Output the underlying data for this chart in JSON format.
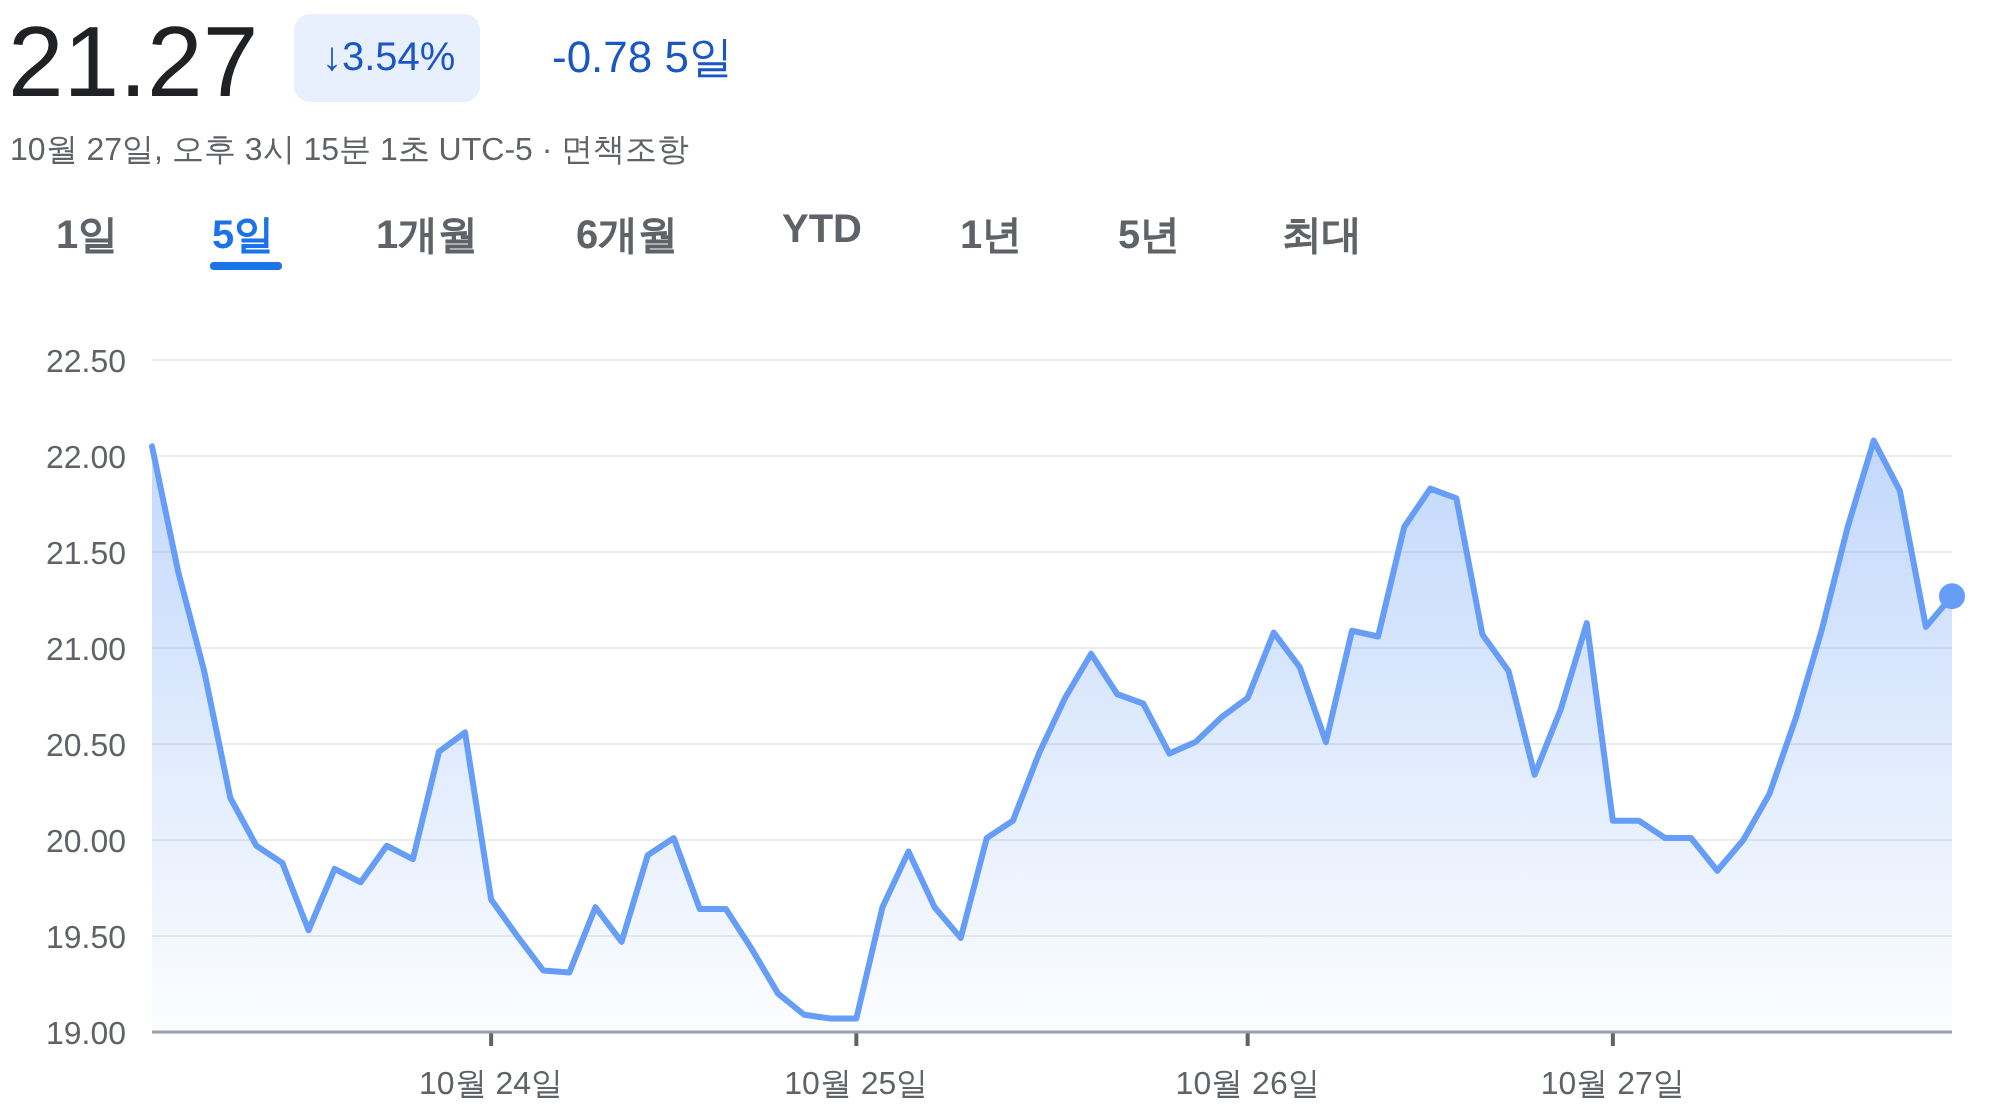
{
  "chart_data": {
    "type": "area",
    "title": "21.27",
    "subtitle": "10월 27일, 오후 3시 15분 1초 UTC-5 · 면책조항",
    "annotations": [
      "↓3.54%",
      "-0.78 5일",
      "1일",
      "5일",
      "1개월",
      "6개월",
      "YTD",
      "1년",
      "5년",
      "최대"
    ],
    "categories": [
      null,
      null,
      null,
      null,
      null,
      null,
      null,
      null,
      null,
      null,
      null,
      null,
      null,
      "10월 24일",
      null,
      null,
      null,
      null,
      null,
      null,
      null,
      null,
      null,
      null,
      null,
      null,
      null,
      "10월 25일",
      null,
      null,
      null,
      null,
      null,
      null,
      null,
      null,
      null,
      null,
      null,
      null,
      null,
      null,
      "10월 26일",
      null,
      null,
      null,
      null,
      null,
      null,
      null,
      null,
      null,
      null,
      null,
      null,
      null,
      "10월 27일",
      null,
      null,
      null,
      null,
      null,
      null,
      null,
      null,
      null,
      null,
      null,
      null,
      null
    ],
    "series": [
      {
        "color": "#669df6",
        "values": [
          22.05,
          21.4,
          20.88,
          20.22,
          19.97,
          19.88,
          19.53,
          19.85,
          19.78,
          19.97,
          19.9,
          20.46,
          20.56,
          19.69,
          19.5,
          19.32,
          19.31,
          19.65,
          19.47,
          19.92,
          20.01,
          19.64,
          19.64,
          19.43,
          19.2,
          19.09,
          19.07,
          19.07,
          19.65,
          19.94,
          19.65,
          19.49,
          20.01,
          20.1,
          20.45,
          20.74,
          20.97,
          20.76,
          20.71,
          20.45,
          20.51,
          20.64,
          20.74,
          21.08,
          20.9,
          20.51,
          21.09,
          21.06,
          21.63,
          21.83,
          21.78,
          21.07,
          20.88,
          20.34,
          20.68,
          21.13,
          20.1,
          20.1,
          20.01,
          20.01,
          19.84,
          20.0,
          20.24,
          20.63,
          21.09,
          21.63,
          22.08,
          21.82,
          21.11,
          21.27
        ]
      }
    ],
    "ylim": [
      19,
      22.5
    ],
    "yticks": [
      {
        "value": 19,
        "label": "19.00"
      },
      {
        "value": 19.5,
        "label": "19.50"
      },
      {
        "value": 20,
        "label": "20.00"
      },
      {
        "value": 20.5,
        "label": "20.50"
      },
      {
        "value": 21,
        "label": "21.00"
      },
      {
        "value": 21.5,
        "label": "21.50"
      },
      {
        "value": 22,
        "label": "22.00"
      },
      {
        "value": 22.5,
        "label": "22.50"
      }
    ],
    "grid": "y"
  }
}
